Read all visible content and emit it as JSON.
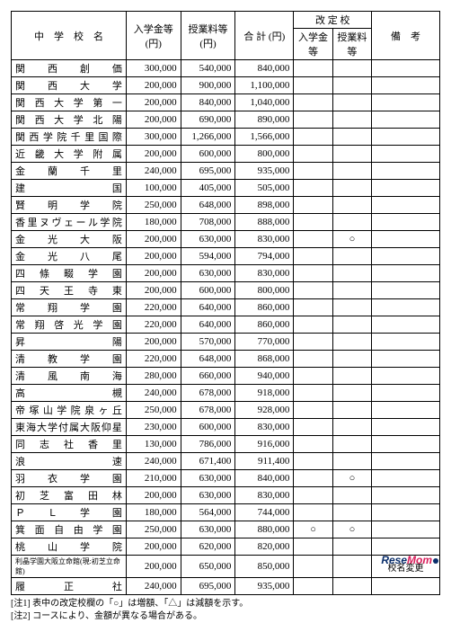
{
  "headers": {
    "name": "中　学　校　名",
    "fee1": "入学金等(円)",
    "fee2": "授業料等(円)",
    "total": "合 計 (円)",
    "revised": "改 定 校",
    "rev1": "入学金等",
    "rev2": "授業料等",
    "note": "備　考"
  },
  "rows": [
    {
      "name": "関　西　創　価",
      "f1": "300,000",
      "f2": "540,000",
      "t": "840,000",
      "r1": "",
      "r2": "",
      "n": ""
    },
    {
      "name": "関　西　大　学",
      "f1": "200,000",
      "f2": "900,000",
      "t": "1,100,000",
      "r1": "",
      "r2": "",
      "n": ""
    },
    {
      "name": "関 西 大 学 第 一",
      "f1": "200,000",
      "f2": "840,000",
      "t": "1,040,000",
      "r1": "",
      "r2": "",
      "n": ""
    },
    {
      "name": "関 西 大 学 北 陽",
      "f1": "200,000",
      "f2": "690,000",
      "t": "890,000",
      "r1": "",
      "r2": "",
      "n": ""
    },
    {
      "name": "関西学院千里国際",
      "f1": "300,000",
      "f2": "1,266,000",
      "t": "1,566,000",
      "r1": "",
      "r2": "",
      "n": ""
    },
    {
      "name": "近 畿 大 学 附 属",
      "f1": "200,000",
      "f2": "600,000",
      "t": "800,000",
      "r1": "",
      "r2": "",
      "n": ""
    },
    {
      "name": "金　蘭　千　里",
      "f1": "240,000",
      "f2": "695,000",
      "t": "935,000",
      "r1": "",
      "r2": "",
      "n": ""
    },
    {
      "name": "建　　　　　国",
      "f1": "100,000",
      "f2": "405,000",
      "t": "505,000",
      "r1": "",
      "r2": "",
      "n": ""
    },
    {
      "name": "賢　明　学　院",
      "f1": "250,000",
      "f2": "648,000",
      "t": "898,000",
      "r1": "",
      "r2": "",
      "n": ""
    },
    {
      "name": "香里ヌヴェール学院",
      "f1": "180,000",
      "f2": "708,000",
      "t": "888,000",
      "r1": "",
      "r2": "",
      "n": ""
    },
    {
      "name": "金　光　大　阪",
      "f1": "200,000",
      "f2": "630,000",
      "t": "830,000",
      "r1": "",
      "r2": "○",
      "n": ""
    },
    {
      "name": "金　光　八　尾",
      "f1": "200,000",
      "f2": "594,000",
      "t": "794,000",
      "r1": "",
      "r2": "",
      "n": ""
    },
    {
      "name": "四　條　畷　学　園",
      "f1": "200,000",
      "f2": "630,000",
      "t": "830,000",
      "r1": "",
      "r2": "",
      "n": ""
    },
    {
      "name": "四　天　王　寺　東",
      "f1": "200,000",
      "f2": "600,000",
      "t": "800,000",
      "r1": "",
      "r2": "",
      "n": ""
    },
    {
      "name": "常　翔　学　園",
      "f1": "220,000",
      "f2": "640,000",
      "t": "860,000",
      "r1": "",
      "r2": "",
      "n": ""
    },
    {
      "name": "常 翔 啓 光 学 園",
      "f1": "220,000",
      "f2": "640,000",
      "t": "860,000",
      "r1": "",
      "r2": "",
      "n": ""
    },
    {
      "name": "昇　　　　　陽",
      "f1": "200,000",
      "f2": "570,000",
      "t": "770,000",
      "r1": "",
      "r2": "",
      "n": ""
    },
    {
      "name": "清　教　学　園",
      "f1": "220,000",
      "f2": "648,000",
      "t": "868,000",
      "r1": "",
      "r2": "",
      "n": ""
    },
    {
      "name": "清　風　南　海",
      "f1": "280,000",
      "f2": "660,000",
      "t": "940,000",
      "r1": "",
      "r2": "",
      "n": ""
    },
    {
      "name": "高　　　　　槻",
      "f1": "240,000",
      "f2": "678,000",
      "t": "918,000",
      "r1": "",
      "r2": "",
      "n": ""
    },
    {
      "name": "帝塚山学院泉ヶ丘",
      "f1": "250,000",
      "f2": "678,000",
      "t": "928,000",
      "r1": "",
      "r2": "",
      "n": ""
    },
    {
      "name": "東海大学付属大阪仰星",
      "f1": "230,000",
      "f2": "600,000",
      "t": "830,000",
      "r1": "",
      "r2": "",
      "n": ""
    },
    {
      "name": "同　志　社　香　里",
      "f1": "130,000",
      "f2": "786,000",
      "t": "916,000",
      "r1": "",
      "r2": "",
      "n": ""
    },
    {
      "name": "浪　　　　　速",
      "f1": "240,000",
      "f2": "671,400",
      "t": "911,400",
      "r1": "",
      "r2": "",
      "n": ""
    },
    {
      "name": "羽　衣　学　園",
      "f1": "210,000",
      "f2": "630,000",
      "t": "840,000",
      "r1": "",
      "r2": "○",
      "n": ""
    },
    {
      "name": "初　芝　富　田　林",
      "f1": "200,000",
      "f2": "630,000",
      "t": "830,000",
      "r1": "",
      "r2": "",
      "n": ""
    },
    {
      "name": "Ｐ　Ｌ　学　園",
      "f1": "180,000",
      "f2": "564,000",
      "t": "744,000",
      "r1": "",
      "r2": "",
      "n": ""
    },
    {
      "name": "箕 面 自 由 学 園",
      "f1": "250,000",
      "f2": "630,000",
      "t": "880,000",
      "r1": "○",
      "r2": "○",
      "n": ""
    },
    {
      "name": "桃　山　学　院",
      "f1": "200,000",
      "f2": "620,000",
      "t": "820,000",
      "r1": "",
      "r2": "",
      "n": ""
    },
    {
      "name": "利晶学園大阪立命館(現:初芝立命館)",
      "f1": "200,000",
      "f2": "650,000",
      "t": "850,000",
      "r1": "",
      "r2": "",
      "n": "校名変更"
    },
    {
      "name": "履　正　社",
      "f1": "240,000",
      "f2": "695,000",
      "t": "935,000",
      "r1": "",
      "r2": "",
      "n": ""
    }
  ],
  "notes": {
    "n1": "[注1] 表中の改定校欄の「○」は増額、「△」は減額を示す。",
    "n2": "[注2] コースにより、金額が異なる場合がある。"
  },
  "logo": {
    "re": "Rese",
    "mom": "Mom"
  }
}
